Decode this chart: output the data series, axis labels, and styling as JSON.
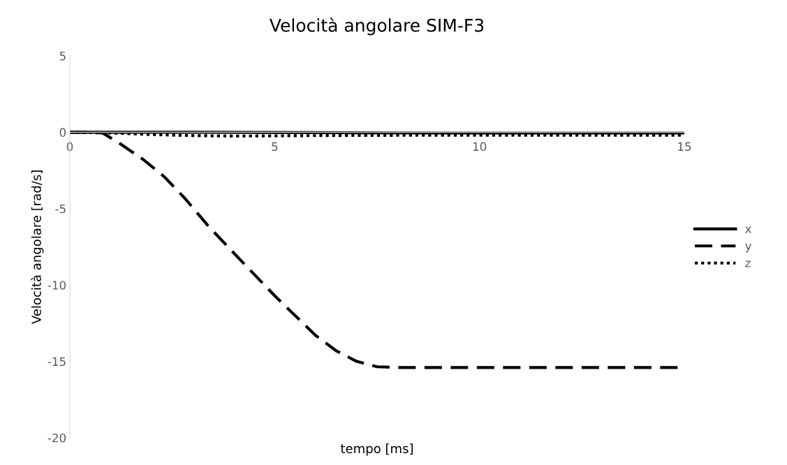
{
  "chart_data": {
    "type": "line",
    "title": "Velocità angolare SIM-F3",
    "xlabel": "tempo [ms]",
    "ylabel": "Velocità angolare [rad/s]",
    "xlim": [
      0,
      15
    ],
    "xticks": [
      0,
      5,
      10,
      15
    ],
    "ylim": [
      -20,
      5
    ],
    "yticks": [
      -20,
      -15,
      -10,
      -5,
      0,
      5
    ],
    "grid": false,
    "legend": "right",
    "series": [
      {
        "name": "x",
        "color": "#000000",
        "line_style": "solid",
        "x": [
          0,
          3,
          6,
          9,
          12,
          15
        ],
        "values": [
          0,
          0,
          -0.02,
          -0.05,
          -0.05,
          -0.05
        ]
      },
      {
        "name": "y",
        "color": "#000000",
        "line_style": "dashed",
        "x": [
          0,
          0.5,
          0.8,
          1.2,
          1.8,
          2.3,
          2.8,
          3.4,
          4.0,
          4.5,
          5.0,
          5.5,
          6.0,
          6.5,
          7.0,
          7.5,
          8.0,
          10,
          12,
          15
        ],
        "values": [
          0,
          0,
          -0.05,
          -0.7,
          -1.8,
          -2.9,
          -4.3,
          -6.2,
          -7.9,
          -9.3,
          -10.7,
          -12.0,
          -13.3,
          -14.3,
          -15.0,
          -15.35,
          -15.4,
          -15.4,
          -15.4,
          -15.4
        ]
      },
      {
        "name": "z",
        "color": "#000000",
        "line_style": "dotted",
        "x": [
          0,
          1,
          2,
          3,
          4,
          6,
          8,
          10,
          12,
          15
        ],
        "values": [
          0,
          -0.05,
          -0.15,
          -0.22,
          -0.25,
          -0.22,
          -0.2,
          -0.2,
          -0.2,
          -0.2
        ]
      }
    ]
  }
}
